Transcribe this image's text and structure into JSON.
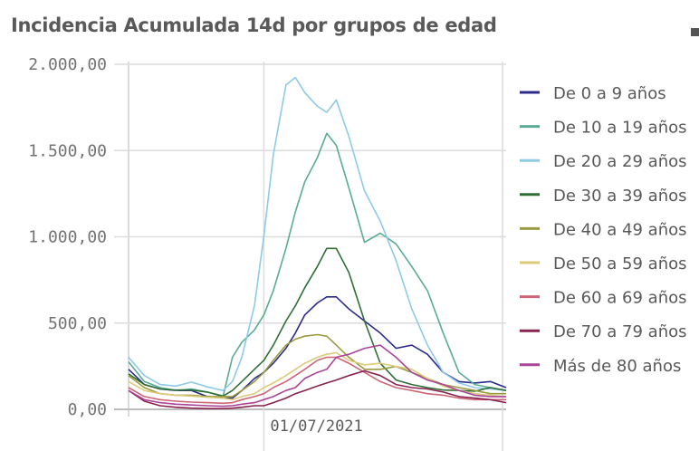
{
  "chart_data": {
    "type": "line",
    "title": "Incidencia Acumulada 14d por grupos de edad",
    "xlabel": "",
    "ylabel": "",
    "ylim": [
      0,
      2000
    ],
    "yticks": [
      0,
      500,
      1000,
      1500,
      2000
    ],
    "ytick_labels": [
      "0,00",
      "500,00",
      "1.000,00",
      "1.500,00",
      "2.000,00"
    ],
    "x_unit": "day index",
    "xlim": [
      0,
      120
    ],
    "xticks": [
      {
        "x": 43,
        "label": "01/07/2021"
      }
    ],
    "grid": true,
    "legend_position": "right",
    "x": [
      0,
      5,
      10,
      15,
      20,
      25,
      30,
      33,
      36,
      40,
      43,
      46,
      50,
      53,
      56,
      60,
      63,
      66,
      70,
      75,
      80,
      85,
      90,
      95,
      100,
      105,
      110,
      115,
      120
    ],
    "series": [
      {
        "name": "De 0 a 9 años",
        "color": "#2b2b8c",
        "values": [
          232,
          144,
          118,
          109,
          109,
          74,
          65,
          65,
          109,
          179,
          214,
          267,
          354,
          442,
          547,
          617,
          652,
          652,
          582,
          512,
          442,
          354,
          372,
          319,
          214,
          161,
          153,
          161,
          126
        ]
      },
      {
        "name": "De 10 a 19 años",
        "color": "#5aab96",
        "values": [
          275,
          161,
          126,
          109,
          118,
          100,
          74,
          302,
          389,
          460,
          547,
          688,
          933,
          1144,
          1319,
          1459,
          1600,
          1530,
          1284,
          968,
          1021,
          959,
          828,
          688,
          442,
          214,
          144,
          126,
          109
        ]
      },
      {
        "name": "De 20 a 29 años",
        "color": "#8ecae6",
        "values": [
          302,
          196,
          144,
          135,
          158,
          130,
          109,
          161,
          302,
          600,
          1003,
          1477,
          1880,
          1924,
          1836,
          1757,
          1722,
          1793,
          1582,
          1266,
          1091,
          863,
          582,
          372,
          214,
          153,
          126,
          118,
          109
        ]
      },
      {
        "name": "De 30 a 39 años",
        "color": "#2f6f36",
        "values": [
          205,
          144,
          118,
          112,
          112,
          100,
          77,
          109,
          161,
          232,
          284,
          372,
          512,
          600,
          705,
          828,
          933,
          933,
          793,
          512,
          267,
          170,
          144,
          126,
          112,
          109,
          105,
          126,
          109
        ]
      },
      {
        "name": "De 40 a 49 años",
        "color": "#9a9a40",
        "values": [
          196,
          126,
          91,
          82,
          82,
          74,
          74,
          74,
          109,
          161,
          214,
          284,
          372,
          407,
          424,
          433,
          424,
          372,
          302,
          232,
          232,
          249,
          214,
          179,
          144,
          126,
          109,
          91,
          91
        ]
      },
      {
        "name": "De 50 a 59 años",
        "color": "#dccb7a",
        "values": [
          161,
          109,
          91,
          82,
          77,
          70,
          65,
          56,
          74,
          91,
          126,
          153,
          196,
          232,
          267,
          302,
          319,
          328,
          284,
          258,
          267,
          249,
          232,
          179,
          135,
          109,
          91,
          82,
          74
        ]
      },
      {
        "name": "De 60 a 69 años",
        "color": "#cc6677",
        "values": [
          126,
          74,
          56,
          47,
          42,
          39,
          35,
          39,
          56,
          74,
          91,
          126,
          161,
          196,
          232,
          284,
          302,
          302,
          267,
          214,
          161,
          126,
          109,
          91,
          82,
          65,
          56,
          56,
          56
        ]
      },
      {
        "name": "De 70 a 79 años",
        "color": "#88224f",
        "values": [
          109,
          47,
          21,
          12,
          7,
          4,
          4,
          7,
          12,
          21,
          21,
          39,
          65,
          91,
          109,
          135,
          153,
          170,
          196,
          223,
          196,
          144,
          126,
          118,
          100,
          74,
          65,
          56,
          39
        ]
      },
      {
        "name": "Más de 80 años",
        "color": "#aa4499",
        "values": [
          109,
          56,
          39,
          30,
          25,
          21,
          18,
          21,
          30,
          39,
          56,
          74,
          109,
          126,
          179,
          214,
          232,
          302,
          319,
          354,
          372,
          302,
          214,
          170,
          144,
          109,
          82,
          74,
          74
        ]
      }
    ]
  }
}
